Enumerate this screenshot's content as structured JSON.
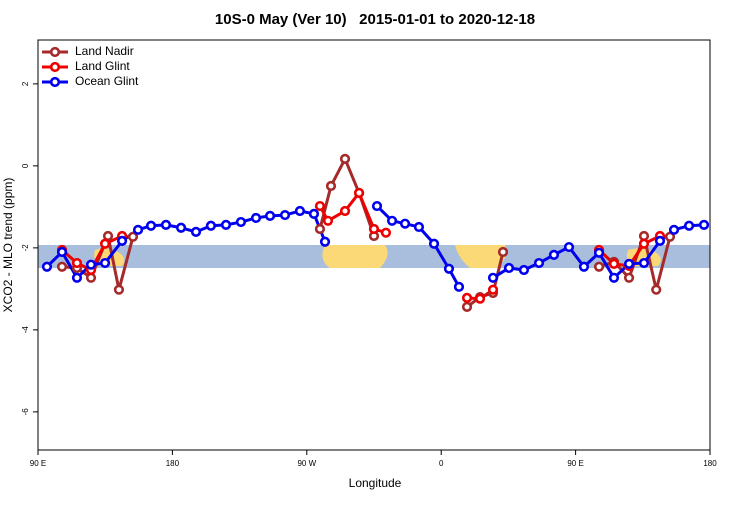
{
  "chart_data": {
    "type": "line",
    "title": "10S-0 May (Ver 10)   2015-01-01 to 2020-12-18",
    "x_label": "Longitude",
    "y_label": "XCO2 - MLO trend (ppm)",
    "xlim": [
      90,
      540
    ],
    "xticks": [
      {
        "value": 90,
        "label": "90 E"
      },
      180,
      {
        "value": 270,
        "label": "90 W"
      },
      {
        "value": 360,
        "label": "0"
      },
      {
        "value": 450,
        "label": "90 E"
      },
      {
        "value": 540,
        "label": "180"
      }
    ],
    "ylim": [
      -6.93,
      3.07
    ],
    "yticks": [
      2,
      0,
      -2,
      -4,
      -6
    ],
    "legend": "top-left",
    "series": [
      {
        "name": "Land Nadir",
        "color": "#a52a2a",
        "x": [
          106.1,
          116.1,
          125.5,
          136.9,
          144.2,
          153.6,
          null,
          278.8,
          286.2,
          295.6,
          305.0,
          315.0,
          null,
          377.3,
          386.0,
          394.7,
          401.4,
          null,
          465.7,
          475.7,
          485.8,
          495.8,
          504.0,
          513.2
        ],
        "values": [
          -2.46,
          -2.49,
          -2.73,
          -1.71,
          -3.02,
          -1.73,
          null,
          -1.54,
          -0.49,
          0.17,
          -0.66,
          -1.71,
          null,
          -3.44,
          -3.2,
          -3.1,
          -2.1,
          null,
          -2.46,
          -2.34,
          -2.73,
          -1.71,
          -3.02,
          -1.73
        ]
      },
      {
        "name": "Land Glint",
        "color": "#ee0000",
        "x": [
          106.1,
          116.1,
          125.5,
          134.9,
          146.3,
          null,
          278.8,
          284.2,
          295.6,
          305.0,
          315.0,
          323.0,
          null,
          377.3,
          386.0,
          394.7,
          null,
          465.7,
          475.7,
          485.8,
          495.8,
          506.5
        ],
        "values": [
          -2.05,
          -2.37,
          -2.54,
          -1.9,
          -1.71,
          null,
          -0.98,
          -1.34,
          -1.1,
          -0.66,
          -1.54,
          -1.63,
          null,
          -3.22,
          -3.24,
          -3.02,
          null,
          -2.05,
          -2.39,
          -2.44,
          -1.9,
          -1.71
        ]
      },
      {
        "name": "Ocean Glint",
        "color": "#0000ee",
        "x": [
          96.0,
          106.1,
          116.1,
          125.5,
          134.9,
          146.3,
          157.0,
          165.7,
          175.7,
          185.8,
          195.8,
          205.8,
          215.9,
          225.9,
          236.0,
          245.4,
          255.4,
          265.4,
          274.8,
          282.2,
          null,
          317.0,
          327.1,
          335.8,
          345.1,
          355.2,
          365.2,
          371.9,
          null,
          394.7,
          405.4,
          415.4,
          425.5,
          435.5,
          445.6,
          455.6,
          465.7,
          475.7,
          485.8,
          495.8,
          506.5,
          515.9,
          526.0,
          536.0
        ],
        "values": [
          -2.46,
          -2.1,
          -2.73,
          -2.41,
          -2.37,
          -1.83,
          -1.56,
          -1.46,
          -1.44,
          -1.51,
          -1.61,
          -1.46,
          -1.44,
          -1.37,
          -1.27,
          -1.22,
          -1.2,
          -1.1,
          -1.17,
          -1.85,
          null,
          -0.98,
          -1.34,
          -1.41,
          -1.49,
          -1.9,
          -2.51,
          -2.95,
          null,
          -2.73,
          -2.49,
          -2.54,
          -2.37,
          -2.17,
          -1.98,
          -2.46,
          -2.12,
          -2.73,
          -2.39,
          -2.37,
          -1.83,
          -1.56,
          -1.46,
          -1.44
        ]
      }
    ]
  }
}
